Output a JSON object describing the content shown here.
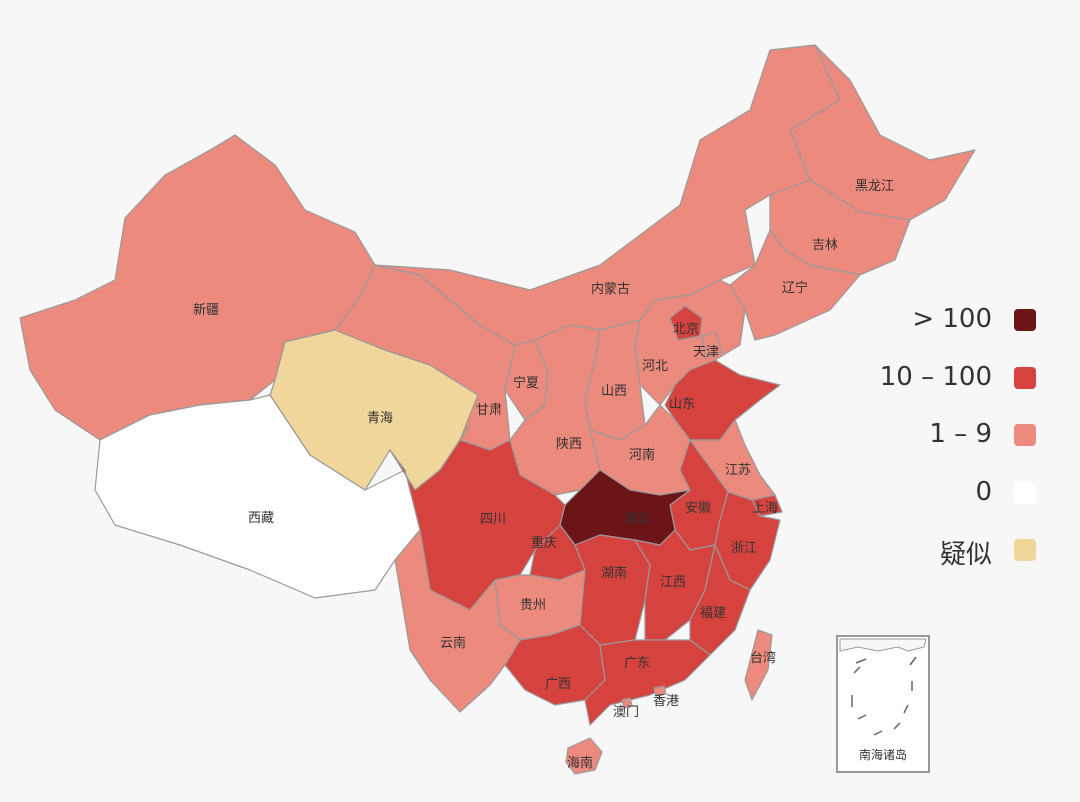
{
  "colors": {
    "over_100": "#6b1519",
    "from_10_to_100": "#d6433f",
    "from_1_to_9": "#eb8a7d",
    "zero": "#ffffff",
    "suspected": "#f1d69c"
  },
  "legend": [
    {
      "label": "> 100",
      "color": "#6b1519"
    },
    {
      "label": "10 – 100",
      "color": "#d6433f"
    },
    {
      "label": "1 – 9",
      "color": "#eb8a7d"
    },
    {
      "label": "0",
      "color": "#ffffff"
    },
    {
      "label": "疑似",
      "color": "#f1d69c"
    }
  ],
  "provinces": {
    "xinjiang": {
      "label": "新疆",
      "category": "1–9"
    },
    "xizang": {
      "label": "西藏",
      "category": "0"
    },
    "qinghai": {
      "label": "青海",
      "category": "疑似"
    },
    "gansu": {
      "label": "甘肃",
      "category": "1–9"
    },
    "neimenggu": {
      "label": "内蒙古",
      "category": "1–9"
    },
    "heilongjiang": {
      "label": "黑龙江",
      "category": "1–9"
    },
    "jilin": {
      "label": "吉林",
      "category": "1–9"
    },
    "liaoning": {
      "label": "辽宁",
      "category": "1–9"
    },
    "beijing": {
      "label": "北京",
      "category": "10–100"
    },
    "tianjin": {
      "label": "天津",
      "category": "1–9"
    },
    "hebei": {
      "label": "河北",
      "category": "1–9"
    },
    "shanxi": {
      "label": "山西",
      "category": "1–9"
    },
    "ningxia": {
      "label": "宁夏",
      "category": "1–9"
    },
    "shaanxi": {
      "label": "陕西",
      "category": "1–9"
    },
    "henan": {
      "label": "河南",
      "category": "1–9"
    },
    "shandong": {
      "label": "山东",
      "category": "10–100"
    },
    "jiangsu": {
      "label": "江苏",
      "category": "1–9"
    },
    "anhui": {
      "label": "安徽",
      "category": "10–100"
    },
    "shanghai": {
      "label": "上海",
      "category": "10–100"
    },
    "hubei": {
      "label": "湖北",
      "category": ">100"
    },
    "sichuan": {
      "label": "四川",
      "category": "10–100"
    },
    "chongqing": {
      "label": "重庆",
      "category": "10–100"
    },
    "zhejiang": {
      "label": "浙江",
      "category": "10–100"
    },
    "hunan": {
      "label": "湖南",
      "category": "10–100"
    },
    "jiangxi": {
      "label": "江西",
      "category": "10–100"
    },
    "guizhou": {
      "label": "贵州",
      "category": "1–9"
    },
    "yunnan": {
      "label": "云南",
      "category": "1–9"
    },
    "guangxi": {
      "label": "广西",
      "category": "10–100"
    },
    "guangdong": {
      "label": "广东",
      "category": "10–100"
    },
    "fujian": {
      "label": "福建",
      "category": "10–100"
    },
    "taiwan": {
      "label": "台湾",
      "category": "1–9"
    },
    "hainan": {
      "label": "海南",
      "category": "1–9"
    },
    "xianggang": {
      "label": "香港",
      "category": "1–9"
    },
    "aomen": {
      "label": "澳门",
      "category": "1–9"
    }
  },
  "inset_label": "南海诸岛"
}
